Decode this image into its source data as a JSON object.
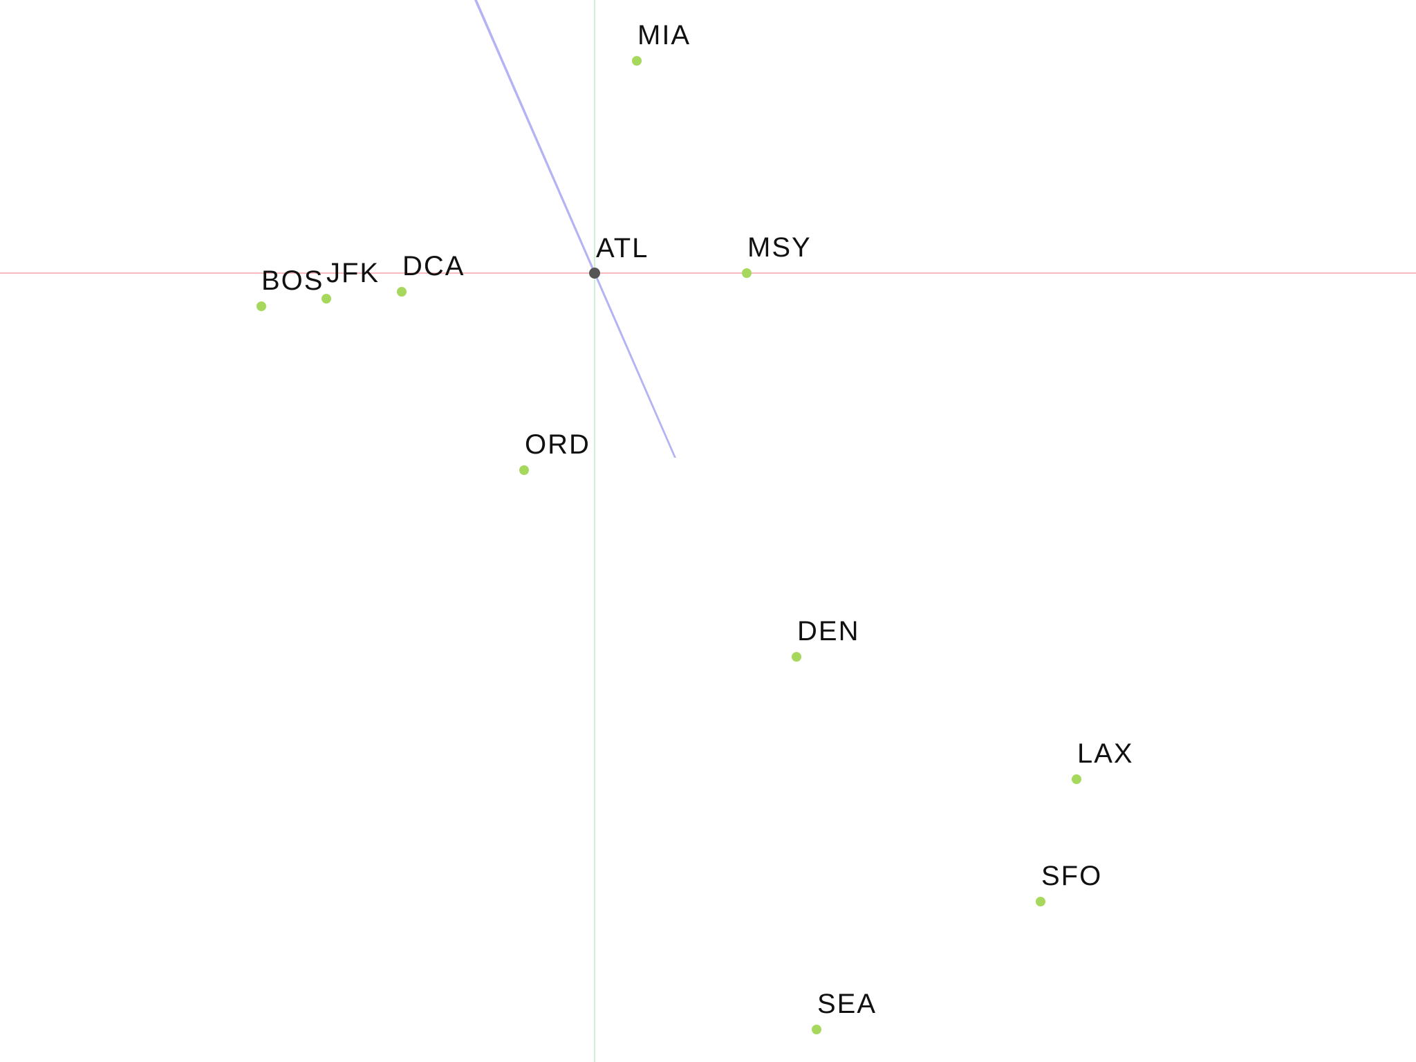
{
  "colors": {
    "background": "#ffffff",
    "horizontal_axis": "#f5a3a8",
    "vertical_axis": "#b8efc4",
    "bearing_line": "#b4b4f5",
    "airport_point": "#a5d85c",
    "origin_point": "#555555",
    "label_text": "#111111"
  },
  "origin": {
    "code": "ATL"
  },
  "airports": [
    {
      "code": "MIA"
    },
    {
      "code": "MSY"
    },
    {
      "code": "DCA"
    },
    {
      "code": "JFK"
    },
    {
      "code": "BOS"
    },
    {
      "code": "ORD"
    },
    {
      "code": "DEN"
    },
    {
      "code": "LAX"
    },
    {
      "code": "SFO"
    },
    {
      "code": "SEA"
    }
  ]
}
